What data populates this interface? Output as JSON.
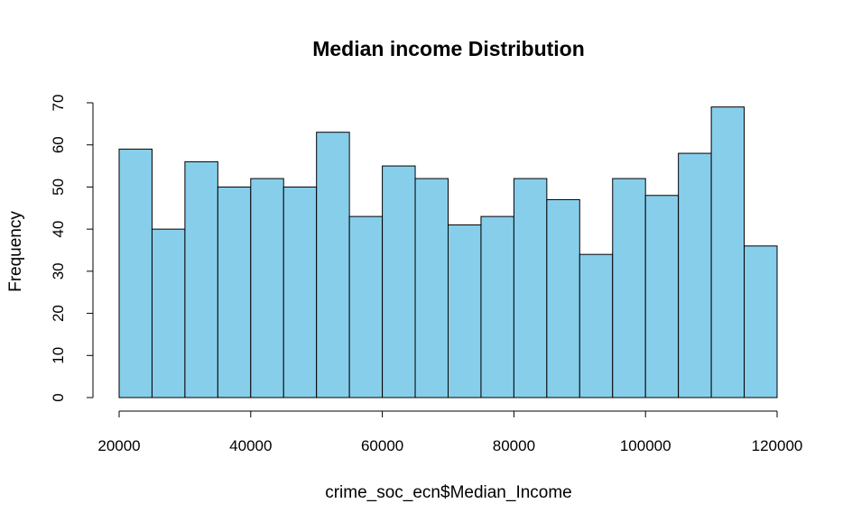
{
  "chart_data": {
    "type": "bar",
    "title": "Median income Distribution",
    "xlabel": "crime_soc_ecn$Median_Income",
    "ylabel": "Frequency",
    "bin_edges": [
      20000,
      25000,
      30000,
      35000,
      40000,
      45000,
      50000,
      55000,
      60000,
      65000,
      70000,
      75000,
      80000,
      85000,
      90000,
      95000,
      100000,
      105000,
      110000,
      115000,
      120000
    ],
    "values": [
      59,
      40,
      56,
      50,
      52,
      50,
      63,
      43,
      55,
      52,
      41,
      43,
      52,
      47,
      34,
      52,
      48,
      58,
      69,
      36
    ],
    "xlim": [
      20000,
      120000
    ],
    "ylim": [
      0,
      70
    ],
    "x_ticks": [
      "20000",
      "40000",
      "60000",
      "80000",
      "100000",
      "120000"
    ],
    "y_ticks": [
      "0",
      "10",
      "20",
      "30",
      "40",
      "50",
      "60",
      "70"
    ],
    "bar_color": "#87CEEB",
    "edge_color": "#000000",
    "grid": false
  }
}
